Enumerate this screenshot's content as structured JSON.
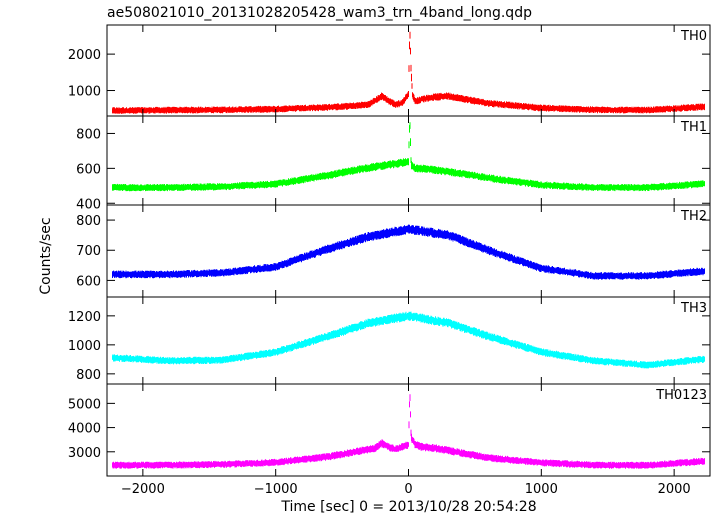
{
  "chart_data": {
    "type": "line",
    "title": "ae508021010_20131028205428_wam3_trn_4band_long.qdp",
    "xlabel": "Time [sec] 0 = 2013/10/28 20:54:28",
    "ylabel": "Counts/sec",
    "xlim": [
      -2270,
      2270
    ],
    "x_ticks": [
      -2000,
      -1000,
      0,
      1000,
      2000
    ],
    "x_tick_labels": [
      "−2000",
      "−1000",
      "0",
      "1000",
      "2000"
    ],
    "panels": [
      {
        "name": "TH0",
        "color": "#ff0000",
        "ylim": [
          300,
          2800
        ],
        "y_ticks": [
          1000,
          2000
        ],
        "series": [
          {
            "name": "TH0",
            "x": [
              -2200,
              -1800,
              -1400,
              -1000,
              -600,
              -400,
              -300,
              -250,
              -200,
              -150,
              -100,
              -50,
              0,
              10,
              20,
              30,
              50,
              100,
              200,
              300,
              400,
              600,
              1000,
              1400,
              1800,
              2200
            ],
            "y": [
              450,
              460,
              470,
              490,
              540,
              580,
              620,
              720,
              850,
              720,
              620,
              650,
              900,
              2700,
              1500,
              900,
              700,
              760,
              820,
              850,
              780,
              650,
              520,
              470,
              460,
              550
            ]
          }
        ]
      },
      {
        "name": "TH1",
        "color": "#00ff00",
        "ylim": [
          390,
          900
        ],
        "y_ticks": [
          400,
          600,
          800
        ],
        "series": [
          {
            "name": "TH1",
            "x": [
              -2200,
              -1800,
              -1400,
              -1000,
              -600,
              -400,
              -200,
              -100,
              0,
              10,
              20,
              50,
              100,
              200,
              400,
              600,
              1000,
              1400,
              1800,
              2200
            ],
            "y": [
              490,
              490,
              495,
              510,
              560,
              590,
              615,
              625,
              640,
              880,
              620,
              600,
              600,
              590,
              570,
              545,
              505,
              490,
              490,
              510
            ]
          }
        ]
      },
      {
        "name": "TH2",
        "color": "#0000ff",
        "ylim": [
          545,
          850
        ],
        "y_ticks": [
          600,
          700,
          800
        ],
        "series": [
          {
            "name": "TH2",
            "x": [
              -2200,
              -1800,
              -1400,
              -1000,
              -600,
              -300,
              0,
              300,
              600,
              1000,
              1400,
              1800,
              2200
            ],
            "y": [
              620,
              620,
              625,
              645,
              705,
              745,
              770,
              750,
              700,
              640,
              615,
              615,
              630
            ]
          }
        ]
      },
      {
        "name": "TH3",
        "color": "#00ffff",
        "ylim": [
          730,
          1330
        ],
        "y_ticks": [
          800,
          1000,
          1200
        ],
        "series": [
          {
            "name": "TH3",
            "x": [
              -2200,
              -1800,
              -1400,
              -1000,
              -600,
              -300,
              0,
              300,
              600,
              1000,
              1400,
              1800,
              2200
            ],
            "y": [
              910,
              890,
              895,
              950,
              1060,
              1150,
              1200,
              1150,
              1060,
              950,
              890,
              860,
              900
            ]
          }
        ]
      },
      {
        "name": "TH0123",
        "color": "#ff00ff",
        "ylim": [
          2000,
          5800
        ],
        "y_ticks": [
          3000,
          4000,
          5000
        ],
        "series": [
          {
            "name": "TH0123",
            "x": [
              -2200,
              -1800,
              -1400,
              -1000,
              -600,
              -400,
              -250,
              -200,
              -150,
              -100,
              0,
              10,
              20,
              50,
              100,
              200,
              300,
              400,
              600,
              1000,
              1400,
              1800,
              2200
            ],
            "y": [
              2450,
              2450,
              2480,
              2560,
              2800,
              3000,
              3150,
              3350,
              3200,
              3100,
              3300,
              5500,
              3600,
              3300,
              3200,
              3150,
              3050,
              2950,
              2750,
              2550,
              2450,
              2440,
              2600
            ]
          }
        ]
      }
    ]
  }
}
